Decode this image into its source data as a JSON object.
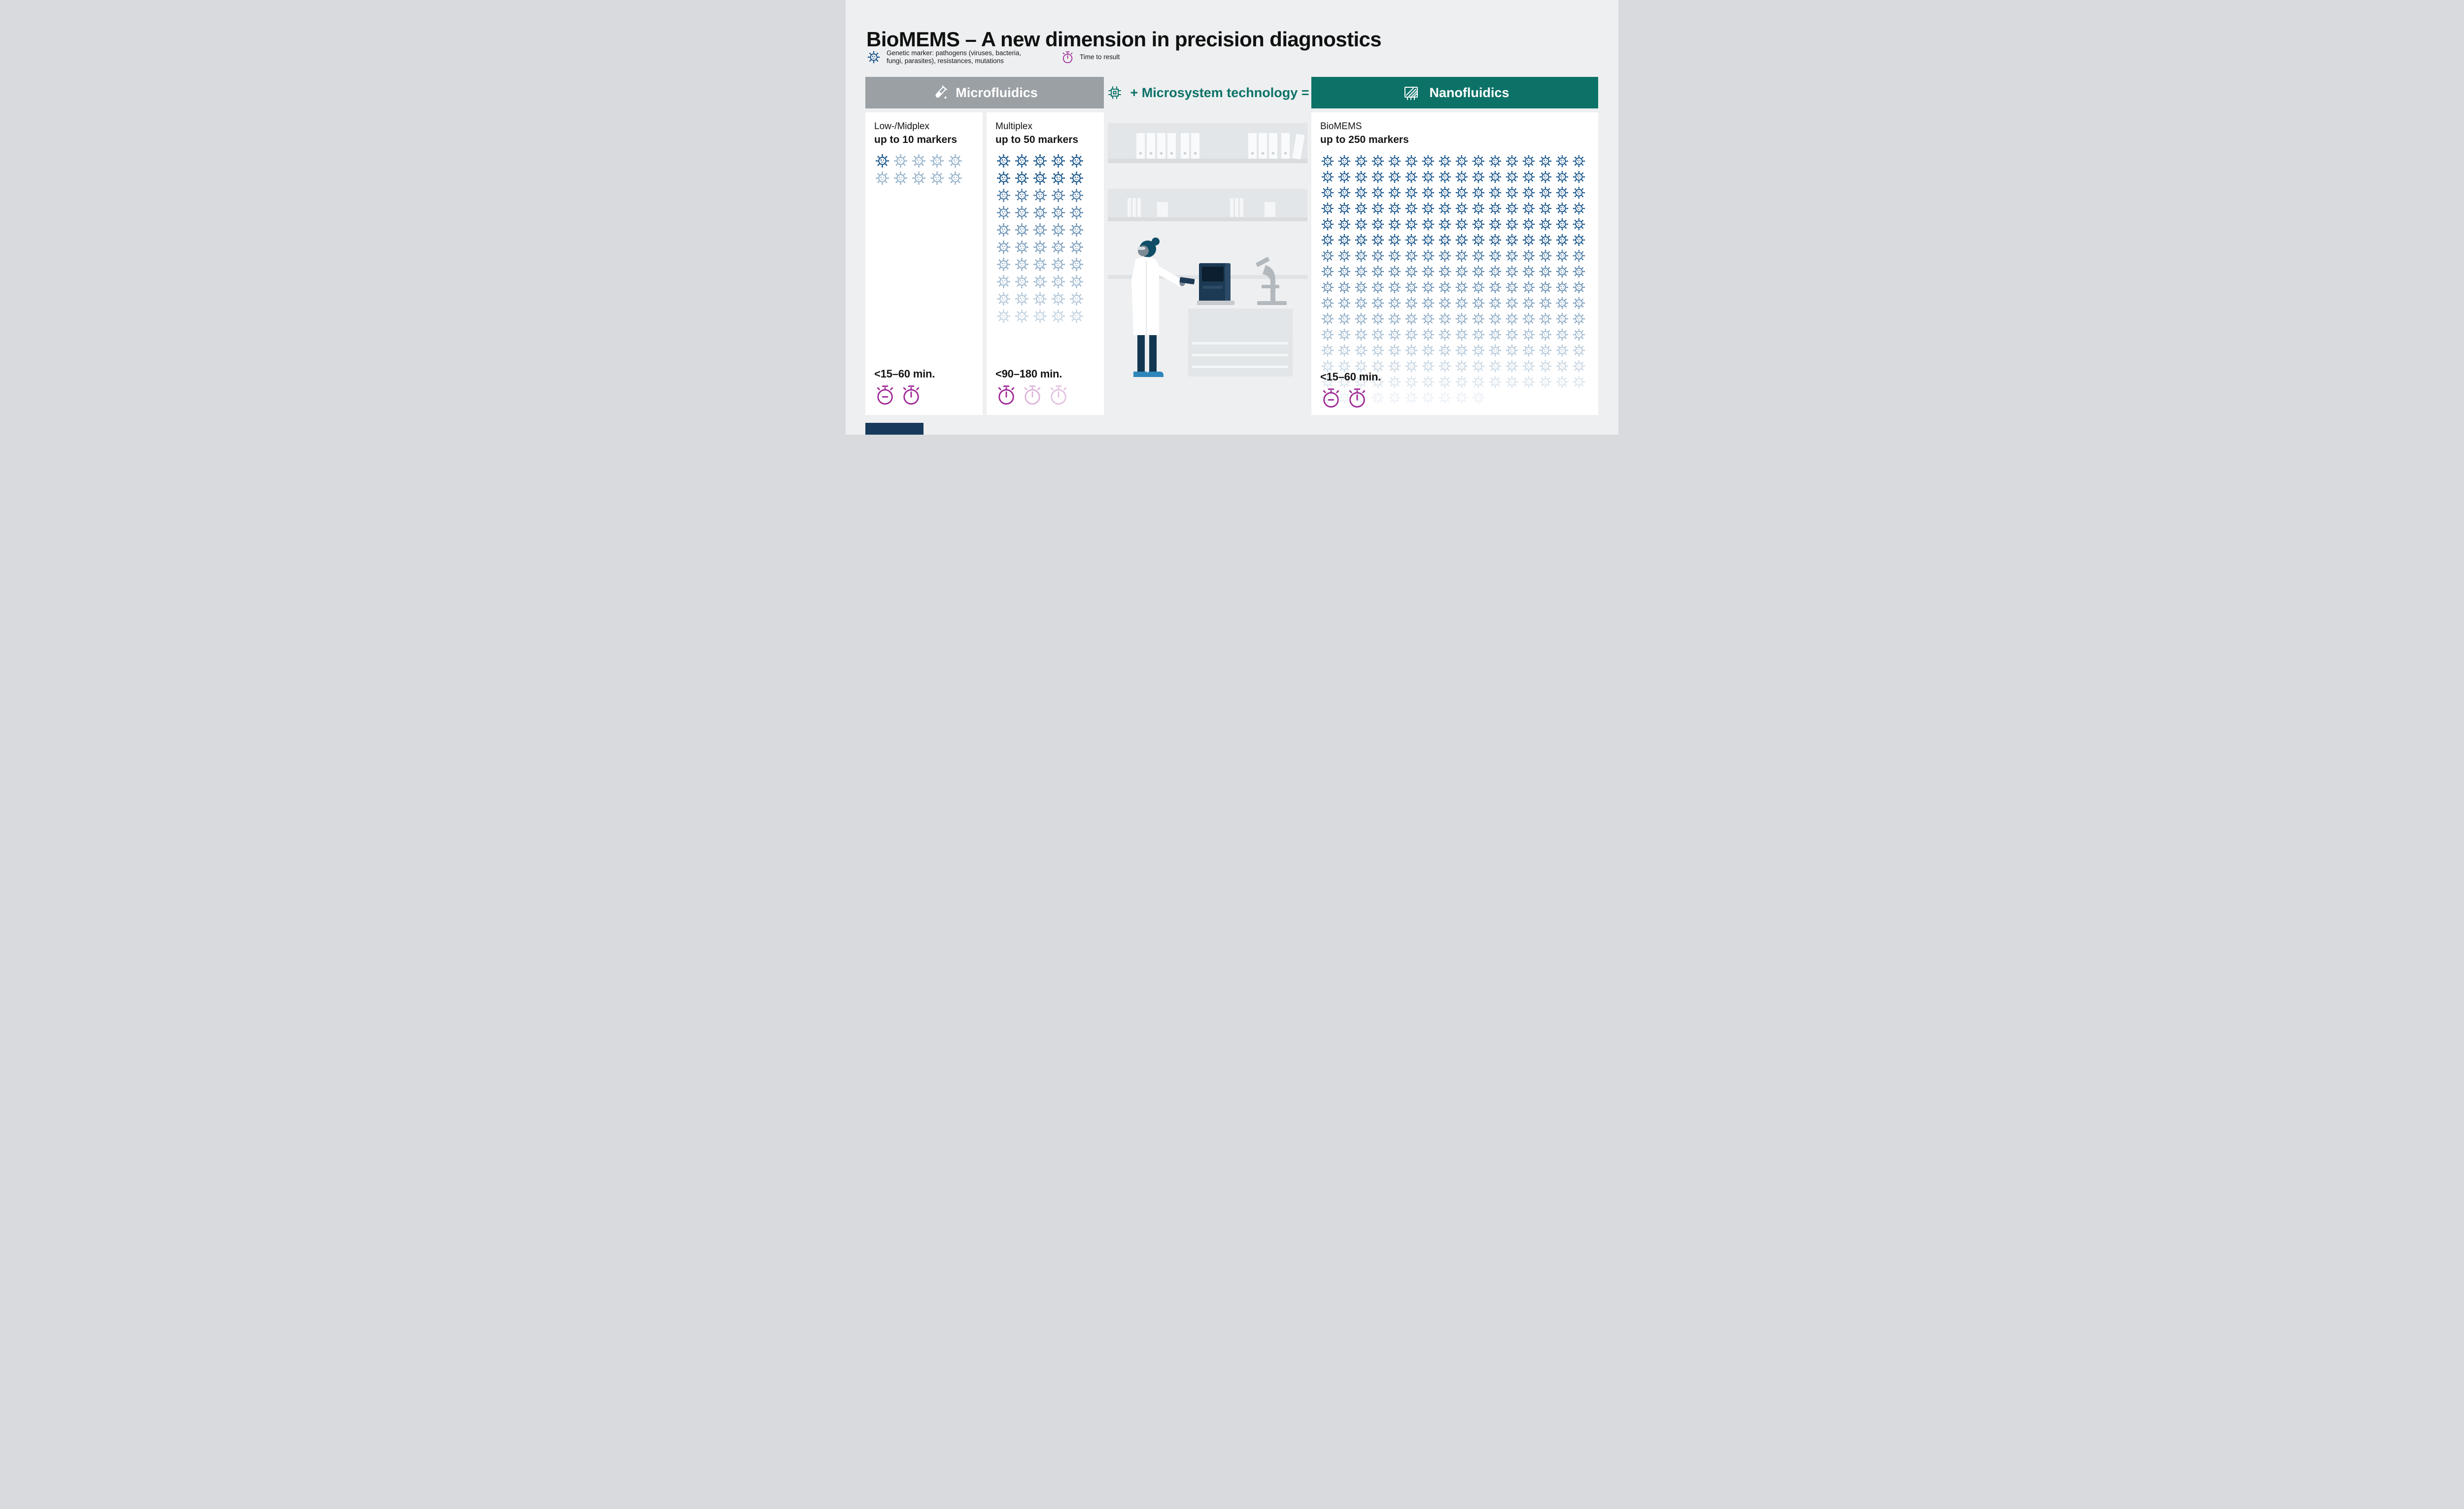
{
  "page": {
    "title": "BioMEMS – A new dimension in precision diagnostics"
  },
  "legend": {
    "marker_label": "Genetic marker: pathogens (viruses, bacteria, fungi, parasites), resistances, mutations",
    "time_label": "Time to result"
  },
  "headers": {
    "microfluidics": "Microfluidics",
    "microsystem": "+ Microsystem technology =",
    "nanofluidics": "Nanofluidics"
  },
  "columns": [
    {
      "title": "Low-/Midplex",
      "subtitle": "up to 10 markers",
      "marker_count": 10,
      "per_row": 5,
      "fade": {
        "mode": "first",
        "light": 0.45
      },
      "time": "<15–60 min.",
      "stopwatches": [
        {
          "style": "dash",
          "opacity": 1
        },
        {
          "style": "needle",
          "opacity": 1
        }
      ]
    },
    {
      "title": "Multiplex",
      "subtitle": "up to 50 markers",
      "marker_count": 50,
      "per_row": 5,
      "fade": {
        "mode": "rows",
        "dark_rows": 2,
        "start": 0.78,
        "step": 0.075,
        "min": 0.16
      },
      "time": "<90–180 min.",
      "stopwatches": [
        {
          "style": "needle",
          "opacity": 1
        },
        {
          "style": "needle",
          "opacity": 0.35
        },
        {
          "style": "needle",
          "opacity": 0.28
        }
      ]
    },
    {
      "title": "BioMEMS",
      "subtitle": "up to 250 markers",
      "marker_count": 250,
      "per_row": 16,
      "fade": {
        "mode": "rows",
        "dark_rows": 6,
        "start": 0.8,
        "step": 0.08,
        "min": 0.06
      },
      "time": "<15–60 min.",
      "stopwatches": [
        {
          "style": "dash",
          "opacity": 1
        },
        {
          "style": "needle",
          "opacity": 1
        }
      ]
    }
  ],
  "colors": {
    "background": "#edeff0",
    "card": "#ffffff",
    "gray_header": "#9ba0a4",
    "teal": "#0c7268",
    "marker_blue": "#15538a",
    "stopwatch_magenta": "#9e2896",
    "accent_navy": "#173a5c"
  }
}
